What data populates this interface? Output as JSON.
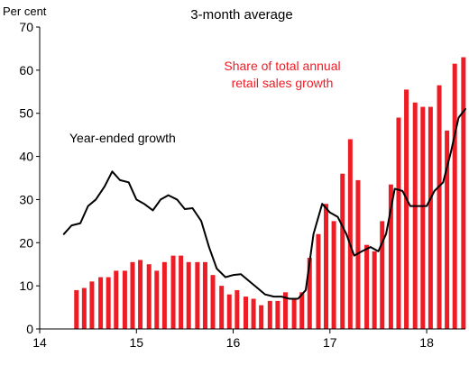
{
  "chart_data": {
    "type": "bar+line",
    "subtitle": "3-month average",
    "unit_label": "Per cent",
    "xlim": [
      14,
      18.4
    ],
    "ylim": [
      0,
      70
    ],
    "y_ticks": [
      0,
      10,
      20,
      30,
      40,
      50,
      60,
      70
    ],
    "x_ticks": [
      14,
      15,
      16,
      17,
      18
    ],
    "x_tick_labels": [
      "14",
      "15",
      "16",
      "17",
      "18"
    ],
    "grid": false,
    "bar_color": "#ee1c24",
    "line_color": "#000000",
    "annotations": {
      "bars": [
        "Share of total annual",
        "retail sales growth"
      ],
      "line": "Year-ended growth"
    },
    "bars": {
      "x": [
        14.38,
        14.46,
        14.54,
        14.63,
        14.71,
        14.79,
        14.88,
        14.96,
        15.04,
        15.13,
        15.21,
        15.29,
        15.38,
        15.46,
        15.54,
        15.63,
        15.71,
        15.79,
        15.88,
        15.96,
        16.04,
        16.13,
        16.21,
        16.29,
        16.38,
        16.46,
        16.54,
        16.63,
        16.71,
        16.79,
        16.88,
        16.96,
        17.04,
        17.13,
        17.21,
        17.29,
        17.38,
        17.46,
        17.54,
        17.63,
        17.71,
        17.79,
        17.88,
        17.96,
        18.04,
        18.13,
        18.21,
        18.29,
        18.38
      ],
      "values": [
        9,
        9.5,
        11,
        12,
        12,
        13.5,
        13.5,
        15.5,
        16,
        15,
        13.5,
        15.5,
        17,
        17,
        15.5,
        15.5,
        15.5,
        12.5,
        10,
        8,
        9,
        7.5,
        7,
        5.5,
        6.5,
        6.5,
        8.5,
        7,
        8.5,
        16.5,
        22,
        29,
        25,
        36,
        44,
        34.5,
        19.5,
        18,
        25,
        33.5,
        49,
        55.5,
        52.5,
        51.5,
        51.5,
        56.5,
        46,
        61.5,
        63
      ]
    },
    "line": {
      "x": [
        14.25,
        14.33,
        14.42,
        14.5,
        14.58,
        14.67,
        14.75,
        14.83,
        14.92,
        15.0,
        15.08,
        15.17,
        15.25,
        15.33,
        15.42,
        15.5,
        15.58,
        15.67,
        15.75,
        15.83,
        15.92,
        16.0,
        16.08,
        16.17,
        16.25,
        16.33,
        16.42,
        16.5,
        16.58,
        16.67,
        16.75,
        16.83,
        16.92,
        17.0,
        17.08,
        17.17,
        17.25,
        17.33,
        17.42,
        17.5,
        17.58,
        17.67,
        17.75,
        17.83,
        17.92,
        18.0,
        18.08,
        18.17,
        18.25,
        18.33,
        18.4
      ],
      "values": [
        22,
        24,
        24.5,
        28.5,
        30,
        33,
        36.5,
        34.5,
        34,
        30,
        29,
        27.5,
        30,
        31,
        30,
        27.8,
        28,
        25,
        19,
        14,
        12,
        12.5,
        12.7,
        11,
        9.5,
        8,
        7.5,
        7.5,
        7,
        7,
        9,
        22,
        29,
        27,
        26,
        22,
        17,
        18,
        19,
        18,
        22,
        32.5,
        32,
        28.5,
        28.5,
        28.5,
        32,
        34,
        41,
        49,
        51
      ]
    }
  }
}
